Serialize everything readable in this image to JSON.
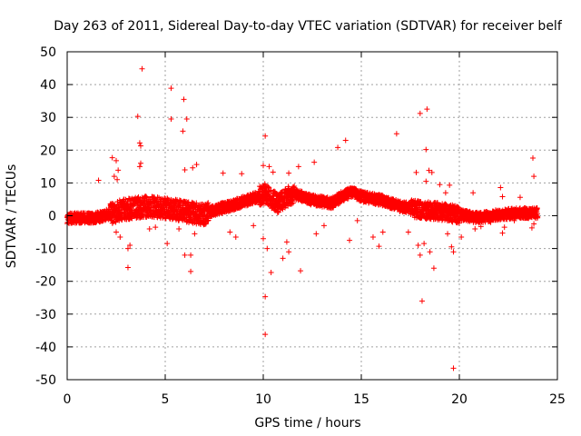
{
  "chart_data": {
    "type": "scatter",
    "title": "Day 263 of 2011, Sidereal Day-to-day VTEC variation (SDTVAR) for receiver belf",
    "xlabel": "GPS time / hours",
    "ylabel": "SDTVAR / TECUs",
    "xlim": [
      0,
      25
    ],
    "ylim": [
      -50,
      50
    ],
    "xticks": [
      0,
      5,
      10,
      15,
      20,
      25
    ],
    "yticks": [
      -50,
      -40,
      -30,
      -20,
      -10,
      0,
      10,
      20,
      30,
      40,
      50
    ],
    "grid": true,
    "marker": "+",
    "marker_color": "#ff0000",
    "series": [
      {
        "name": "SDTVAR",
        "outliers": [
          [
            3.82,
            44.8
          ],
          [
            5.3,
            38.9
          ],
          [
            5.95,
            35.5
          ],
          [
            3.6,
            30.3
          ],
          [
            5.3,
            29.5
          ],
          [
            6.1,
            29.5
          ],
          [
            5.9,
            25.8
          ],
          [
            3.7,
            22.2
          ],
          [
            3.75,
            21.3
          ],
          [
            2.3,
            17.7
          ],
          [
            2.5,
            16.8
          ],
          [
            3.75,
            16.0
          ],
          [
            3.7,
            15.0
          ],
          [
            6.4,
            14.6
          ],
          [
            6.6,
            15.6
          ],
          [
            6.0,
            14.0
          ],
          [
            2.6,
            13.9
          ],
          [
            2.4,
            12.0
          ],
          [
            2.55,
            11.0
          ],
          [
            1.6,
            10.8
          ],
          [
            7.95,
            13.0
          ],
          [
            8.9,
            12.8
          ],
          [
            10.1,
            24.3
          ],
          [
            10.0,
            15.3
          ],
          [
            10.3,
            15.0
          ],
          [
            10.5,
            13.3
          ],
          [
            11.3,
            13.0
          ],
          [
            11.8,
            15.0
          ],
          [
            12.6,
            16.3
          ],
          [
            13.8,
            20.8
          ],
          [
            14.2,
            23.0
          ],
          [
            16.8,
            25.0
          ],
          [
            17.8,
            13.2
          ],
          [
            18.0,
            31.2
          ],
          [
            18.35,
            32.5
          ],
          [
            18.3,
            20.2
          ],
          [
            18.45,
            13.8
          ],
          [
            18.6,
            13.2
          ],
          [
            18.3,
            10.5
          ],
          [
            19.0,
            9.5
          ],
          [
            19.5,
            9.3
          ],
          [
            19.3,
            7.0
          ],
          [
            20.7,
            7.0
          ],
          [
            22.1,
            8.6
          ],
          [
            22.2,
            5.8
          ],
          [
            23.1,
            5.6
          ],
          [
            23.75,
            17.6
          ],
          [
            23.8,
            12.0
          ],
          [
            3.1,
            -15.8
          ],
          [
            3.1,
            -10.0
          ],
          [
            3.2,
            -9.0
          ],
          [
            2.5,
            -5.0
          ],
          [
            2.7,
            -6.5
          ],
          [
            5.1,
            -8.5
          ],
          [
            5.7,
            -4.0
          ],
          [
            6.0,
            -12.0
          ],
          [
            6.3,
            -12.0
          ],
          [
            6.3,
            -17.0
          ],
          [
            6.5,
            -5.5
          ],
          [
            8.3,
            -5.0
          ],
          [
            8.6,
            -6.5
          ],
          [
            10.1,
            -24.7
          ],
          [
            10.1,
            -36.2
          ],
          [
            10.0,
            -7.0
          ],
          [
            10.2,
            -10.0
          ],
          [
            10.4,
            -17.3
          ],
          [
            11.0,
            -13.0
          ],
          [
            11.2,
            -8.0
          ],
          [
            11.3,
            -11.0
          ],
          [
            11.9,
            -16.8
          ],
          [
            12.7,
            -5.5
          ],
          [
            14.4,
            -7.5
          ],
          [
            15.6,
            -6.5
          ],
          [
            15.9,
            -9.3
          ],
          [
            16.1,
            -5.0
          ],
          [
            17.4,
            -5.0
          ],
          [
            17.9,
            -9.0
          ],
          [
            18.0,
            -12.0
          ],
          [
            18.2,
            -8.5
          ],
          [
            18.1,
            -26.0
          ],
          [
            18.5,
            -11.0
          ],
          [
            18.7,
            -16.0
          ],
          [
            19.4,
            -5.5
          ],
          [
            19.6,
            -9.5
          ],
          [
            19.7,
            -11.0
          ],
          [
            19.7,
            -46.5
          ],
          [
            20.1,
            -6.5
          ],
          [
            20.8,
            -4.0
          ],
          [
            21.1,
            -3.3
          ],
          [
            22.2,
            -5.3
          ],
          [
            22.3,
            -3.5
          ],
          [
            23.7,
            -3.7
          ],
          [
            23.8,
            -2.5
          ],
          [
            0.5,
            -1.5
          ],
          [
            1.2,
            -1.0
          ],
          [
            4.2,
            -4.0
          ],
          [
            4.5,
            -3.5
          ],
          [
            9.5,
            -3.0
          ],
          [
            13.1,
            -3.0
          ],
          [
            14.8,
            -1.5
          ],
          [
            21.6,
            -2.0
          ],
          [
            22.8,
            -1.5
          ]
        ]
      }
    ]
  }
}
